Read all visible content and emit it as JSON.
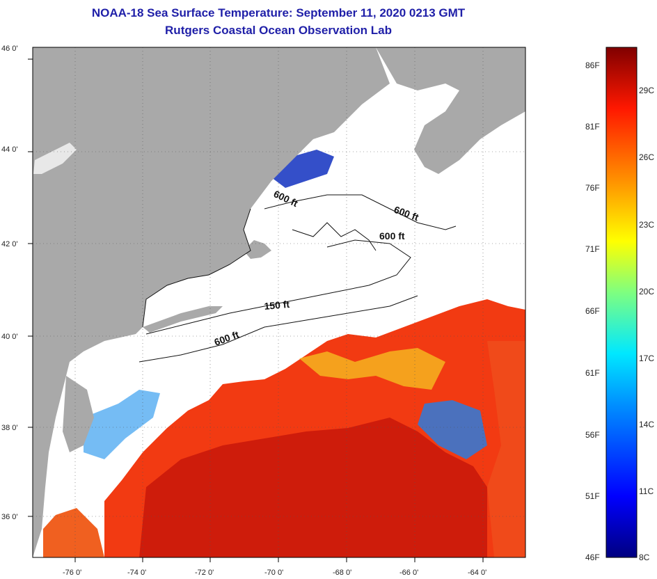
{
  "header": {
    "title": "NOAA-18 Sea Surface Temperature:  September 11, 2020 0213 GMT",
    "subtitle": "Rutgers Coastal Ocean Observation Lab"
  },
  "axes": {
    "lat_labels": [
      "46 0'",
      "44 0'",
      "42 0'",
      "40 0'",
      "38 0'",
      "36 0'"
    ],
    "lon_labels": [
      "-76 0'",
      "-74 0'",
      "-72 0'",
      "-70 0'",
      "-68 0'",
      "-66 0'",
      "-64 0'"
    ]
  },
  "contours": {
    "label_600_a": "600 ft",
    "label_600_b": "600 ft",
    "label_600_c": "600 ft",
    "label_150": "150 ft",
    "label_600_d": "600 ft"
  },
  "colorbar": {
    "fahrenheit": [
      "86F",
      "81F",
      "76F",
      "71F",
      "66F",
      "61F",
      "56F",
      "51F",
      "46F"
    ],
    "celsius": [
      "29C",
      "26C",
      "23C",
      "20C",
      "17C",
      "14C",
      "11C",
      "8C"
    ]
  },
  "colors": {
    "land": "#a9a9a9",
    "cloud": "#ffffff",
    "warm": "#f23a12",
    "hot": "#c41a0a",
    "title": "#1f1fa8"
  }
}
